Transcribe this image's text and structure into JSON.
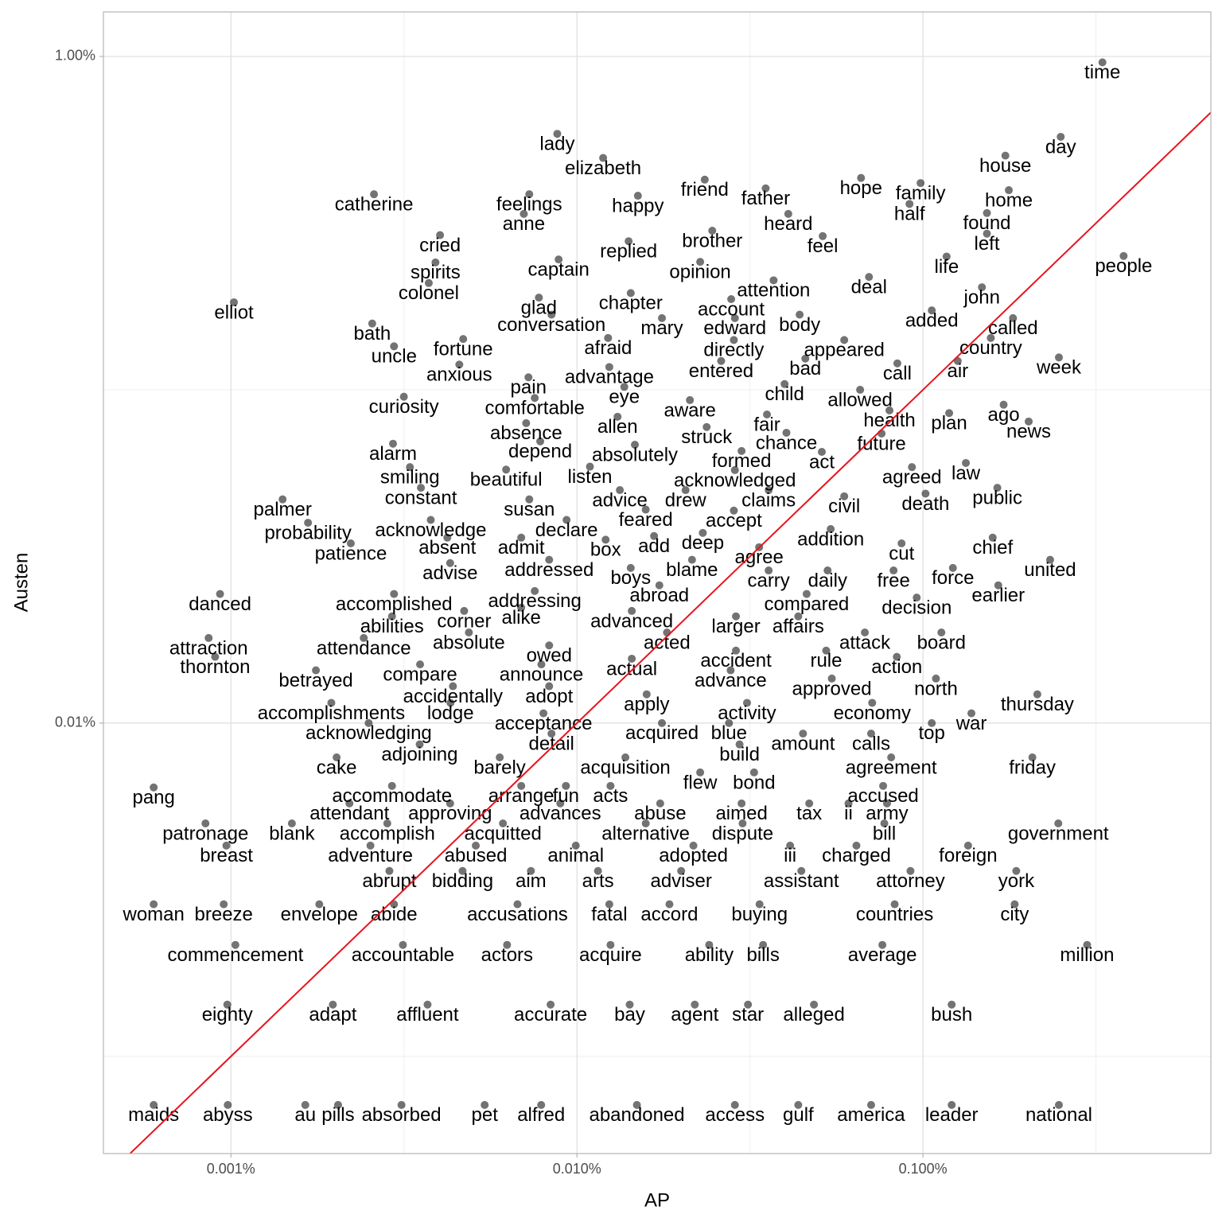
{
  "chart_data": {
    "type": "scatter",
    "x_label": "AP",
    "y_label": "Austen",
    "xscale": "log",
    "yscale": "log",
    "grid": true,
    "xlim": [
      0.000428,
      0.679
    ],
    "ylim": [
      0.000511,
      1.36
    ],
    "xticks": [
      {
        "value": 0.001,
        "label": "0.001%"
      },
      {
        "value": 0.01,
        "label": "0.010%"
      },
      {
        "value": 0.1,
        "label": "0.100%"
      }
    ],
    "yticks": [
      {
        "value": 0.01,
        "label": "0.01%"
      },
      {
        "value": 1,
        "label": "1.00%"
      }
    ],
    "x_minor_ticks": [
      0.003162,
      0.03162,
      0.3162
    ],
    "y_minor_ticks": [
      0.001,
      0.1
    ],
    "color": "rgba(0,0,0,0.55)",
    "label_color": "#000000",
    "reference_line": {
      "slope": 1,
      "intercept": 0,
      "color": "#e8141c"
    },
    "labels": [
      "time",
      "day",
      "house",
      "home",
      "people",
      "lady",
      "elizabeth",
      "catherine",
      "feelings",
      "happy",
      "friend",
      "father",
      "hope",
      "family",
      "half",
      "found",
      "left",
      "anne",
      "heard",
      "brother",
      "feel",
      "cried",
      "replied",
      "spirits",
      "captain",
      "opinion",
      "life",
      "colonel",
      "elliot",
      "attention",
      "deal",
      "john",
      "chapter",
      "glad",
      "account",
      "added",
      "bath",
      "conversation",
      "mary",
      "edward",
      "body",
      "called",
      "uncle",
      "fortune",
      "afraid",
      "directly",
      "appeared",
      "country",
      "anxious",
      "advantage",
      "entered",
      "bad",
      "call",
      "air",
      "week",
      "pain",
      "curiosity",
      "comfortable",
      "eye",
      "child",
      "allowed",
      "aware",
      "fair",
      "health",
      "plan",
      "ago",
      "news",
      "allen",
      "absence",
      "struck",
      "chance",
      "future",
      "depend",
      "alarm",
      "absolutely",
      "formed",
      "act",
      "smiling",
      "beautiful",
      "listen",
      "acknowledged",
      "agreed",
      "law",
      "constant",
      "susan",
      "advice",
      "drew",
      "claims",
      "civil",
      "death",
      "public",
      "palmer",
      "feared",
      "accept",
      "probability",
      "acknowledge",
      "declare",
      "addition",
      "patience",
      "absent",
      "admit",
      "add",
      "deep",
      "chief",
      "agree",
      "cut",
      "box",
      "advise",
      "addressed",
      "blame",
      "united",
      "boys",
      "force",
      "carry",
      "daily",
      "free",
      "abroad",
      "earlier",
      "danced",
      "accomplished",
      "addressing",
      "compared",
      "decision",
      "alike",
      "corner",
      "advanced",
      "larger",
      "affairs",
      "abilities",
      "attraction",
      "attendance",
      "absolute",
      "acted",
      "attack",
      "board",
      "thornton",
      "owed",
      "accident",
      "rule",
      "action",
      "actual",
      "betrayed",
      "compare",
      "announce",
      "advance",
      "approved",
      "north",
      "accidentally",
      "adopt",
      "thursday",
      "apply",
      "accomplishments",
      "lodge",
      "activity",
      "economy",
      "acceptance",
      "war",
      "acknowledging",
      "acquired",
      "blue",
      "top",
      "amount",
      "calls",
      "detail",
      "adjoining",
      "build",
      "cake",
      "barely",
      "acquisition",
      "agreement",
      "friday",
      "flew",
      "bond",
      "pang",
      "accommodate",
      "arrange",
      "fun",
      "acts",
      "accused",
      "attendant",
      "approving",
      "advances",
      "abuse",
      "aimed",
      "tax",
      "ii",
      "army",
      "patronage",
      "blank",
      "accomplish",
      "acquitted",
      "alternative",
      "dispute",
      "bill",
      "government",
      "breast",
      "adventure",
      "abused",
      "animal",
      "adopted",
      "iii",
      "charged",
      "foreign",
      "abrupt",
      "bidding",
      "aim",
      "arts",
      "adviser",
      "assistant",
      "attorney",
      "york",
      "woman",
      "breeze",
      "envelope",
      "abide",
      "accusations",
      "fatal",
      "accord",
      "buying",
      "countries",
      "city",
      "commencement",
      "accountable",
      "actors",
      "acquire",
      "ability",
      "bills",
      "average",
      "million",
      "eighty",
      "adapt",
      "affluent",
      "accurate",
      "bay",
      "agent",
      "star",
      "alleged",
      "bush",
      "maids",
      "abyss",
      "au",
      "pills",
      "absorbed",
      "pet",
      "alfred",
      "abandoned",
      "access",
      "gulf",
      "america",
      "leader",
      "national"
    ],
    "x": [
      0.33,
      0.25,
      0.173,
      0.177,
      0.38,
      0.00877,
      0.0119,
      0.00259,
      0.00728,
      0.015,
      0.0234,
      0.0351,
      0.0662,
      0.0984,
      0.0914,
      0.153,
      0.153,
      0.00702,
      0.0408,
      0.0246,
      0.0513,
      0.00402,
      0.0141,
      0.0039,
      0.00885,
      0.0227,
      0.117,
      0.00373,
      0.00102,
      0.037,
      0.0698,
      0.148,
      0.0143,
      0.00776,
      0.0279,
      0.106,
      0.00256,
      0.00844,
      0.0176,
      0.0286,
      0.044,
      0.182,
      0.00296,
      0.00469,
      0.0123,
      0.0284,
      0.0592,
      0.157,
      0.00457,
      0.0124,
      0.0261,
      0.0457,
      0.0843,
      0.126,
      0.247,
      0.00724,
      0.00316,
      0.00755,
      0.0137,
      0.0398,
      0.0658,
      0.0212,
      0.0354,
      0.08,
      0.119,
      0.171,
      0.202,
      0.0131,
      0.00713,
      0.0237,
      0.0403,
      0.0759,
      0.00783,
      0.00294,
      0.0147,
      0.0299,
      0.051,
      0.00329,
      0.00624,
      0.0109,
      0.0286,
      0.0929,
      0.133,
      0.00354,
      0.00728,
      0.0133,
      0.0206,
      0.0358,
      0.0592,
      0.1017,
      0.164,
      0.00141,
      0.0158,
      0.0284,
      0.00167,
      0.00378,
      0.00933,
      0.0541,
      0.00222,
      0.00422,
      0.0069,
      0.0167,
      0.0231,
      0.159,
      0.0336,
      0.0867,
      0.0121,
      0.0043,
      0.00831,
      0.0215,
      0.233,
      0.0143,
      0.122,
      0.0358,
      0.053,
      0.0822,
      0.0173,
      0.165,
      0.00093,
      0.00296,
      0.00755,
      0.0461,
      0.0959,
      0.0069,
      0.00472,
      0.0144,
      0.0288,
      0.0436,
      0.00292,
      0.000862,
      0.00242,
      0.00487,
      0.0182,
      0.0679,
      0.113,
      0.0009,
      0.00831,
      0.0288,
      0.0525,
      0.084,
      0.0144,
      0.00176,
      0.00352,
      0.00789,
      0.0278,
      0.0545,
      0.109,
      0.00438,
      0.00831,
      0.214,
      0.0159,
      0.00195,
      0.00431,
      0.031,
      0.0713,
      0.008,
      0.138,
      0.0025,
      0.0176,
      0.0275,
      0.106,
      0.045,
      0.0708,
      0.00844,
      0.00351,
      0.0295,
      0.00202,
      0.00598,
      0.0138,
      0.0809,
      0.207,
      0.0227,
      0.0325,
      0.000598,
      0.00292,
      0.0069,
      0.00929,
      0.0125,
      0.0767,
      0.0022,
      0.0043,
      0.00895,
      0.0174,
      0.0299,
      0.0469,
      0.0609,
      0.0787,
      0.000844,
      0.0015,
      0.00283,
      0.00611,
      0.0158,
      0.0301,
      0.0773,
      0.246,
      0.00097,
      0.00253,
      0.0051,
      0.00992,
      0.0217,
      0.0413,
      0.0642,
      0.135,
      0.00287,
      0.00467,
      0.00736,
      0.0115,
      0.02,
      0.0445,
      0.092,
      0.186,
      0.000598,
      0.000953,
      0.0018,
      0.00296,
      0.00673,
      0.0124,
      0.0185,
      0.0337,
      0.0828,
      0.184,
      0.00103,
      0.00314,
      0.00628,
      0.0125,
      0.0241,
      0.0345,
      0.0763,
      0.298,
      0.000976,
      0.00197,
      0.0037,
      0.00839,
      0.0142,
      0.0219,
      0.0312,
      0.0484,
      0.121,
      0.000598,
      0.000979,
      0.00164,
      0.00204,
      0.00311,
      0.00541,
      0.00788,
      0.0149,
      0.0286,
      0.0436,
      0.0708,
      0.121,
      0.247
    ],
    "values": [
      0.96,
      0.574,
      0.504,
      0.397,
      0.252,
      0.586,
      0.496,
      0.386,
      0.386,
      0.382,
      0.427,
      0.402,
      0.432,
      0.417,
      0.361,
      0.339,
      0.294,
      0.337,
      0.337,
      0.3,
      0.289,
      0.291,
      0.279,
      0.241,
      0.246,
      0.242,
      0.251,
      0.209,
      0.183,
      0.213,
      0.218,
      0.203,
      0.195,
      0.189,
      0.187,
      0.173,
      0.158,
      0.168,
      0.164,
      0.164,
      0.168,
      0.164,
      0.135,
      0.142,
      0.143,
      0.141,
      0.141,
      0.143,
      0.119,
      0.117,
      0.122,
      0.124,
      0.12,
      0.122,
      0.125,
      0.109,
      0.0953,
      0.0945,
      0.102,
      0.104,
      0.1,
      0.0931,
      0.0843,
      0.0867,
      0.0851,
      0.0902,
      0.0803,
      0.083,
      0.0794,
      0.0773,
      0.0743,
      0.0739,
      0.07,
      0.0689,
      0.0684,
      0.0655,
      0.0651,
      0.0586,
      0.0576,
      0.0588,
      0.0574,
      0.0586,
      0.0603,
      0.0508,
      0.0469,
      0.05,
      0.05,
      0.05,
      0.0479,
      0.0488,
      0.0508,
      0.0469,
      0.0437,
      0.0434,
      0.0399,
      0.0407,
      0.0407,
      0.0382,
      0.0346,
      0.036,
      0.036,
      0.0364,
      0.0372,
      0.036,
      0.0337,
      0.0346,
      0.0355,
      0.0302,
      0.0309,
      0.0309,
      0.0309,
      0.0292,
      0.0292,
      0.0287,
      0.0287,
      0.0287,
      0.0259,
      0.0259,
      0.0244,
      0.0244,
      0.0249,
      0.0244,
      0.0238,
      0.0222,
      0.0217,
      0.0217,
      0.0209,
      0.0209,
      0.0209,
      0.018,
      0.018,
      0.0187,
      0.0187,
      0.0187,
      0.0187,
      0.0158,
      0.0171,
      0.0165,
      0.0165,
      0.0158,
      0.0156,
      0.0144,
      0.015,
      0.015,
      0.0144,
      0.0136,
      0.0136,
      0.0129,
      0.0129,
      0.0122,
      0.0122,
      0.0115,
      0.0115,
      0.0115,
      0.0115,
      0.0107,
      0.0107,
      0.01,
      0.01,
      0.01,
      0.01,
      0.0093,
      0.0093,
      0.0093,
      0.00863,
      0.00863,
      0.00789,
      0.00789,
      0.00789,
      0.00789,
      0.00789,
      0.00711,
      0.00711,
      0.00641,
      0.00648,
      0.00648,
      0.00648,
      0.00648,
      0.00648,
      0.00574,
      0.00574,
      0.00574,
      0.00574,
      0.00574,
      0.00574,
      0.00574,
      0.00574,
      0.005,
      0.005,
      0.005,
      0.005,
      0.005,
      0.005,
      0.005,
      0.005,
      0.00429,
      0.00429,
      0.00429,
      0.00429,
      0.00429,
      0.00429,
      0.00429,
      0.00429,
      0.0036,
      0.0036,
      0.0036,
      0.0036,
      0.0036,
      0.0036,
      0.0036,
      0.0036,
      0.00286,
      0.00286,
      0.00286,
      0.00286,
      0.00286,
      0.00286,
      0.00286,
      0.00286,
      0.00286,
      0.00286,
      0.00216,
      0.00216,
      0.00216,
      0.00216,
      0.00216,
      0.00216,
      0.00216,
      0.00216,
      0.00143,
      0.00143,
      0.00143,
      0.00143,
      0.00143,
      0.00143,
      0.00143,
      0.00143,
      0.00143,
      0.000715,
      0.000715,
      0.000715,
      0.000715,
      0.000715,
      0.000715,
      0.000715,
      0.000715,
      0.000715,
      0.000715,
      0.000715,
      0.000715,
      0.000715
    ]
  }
}
